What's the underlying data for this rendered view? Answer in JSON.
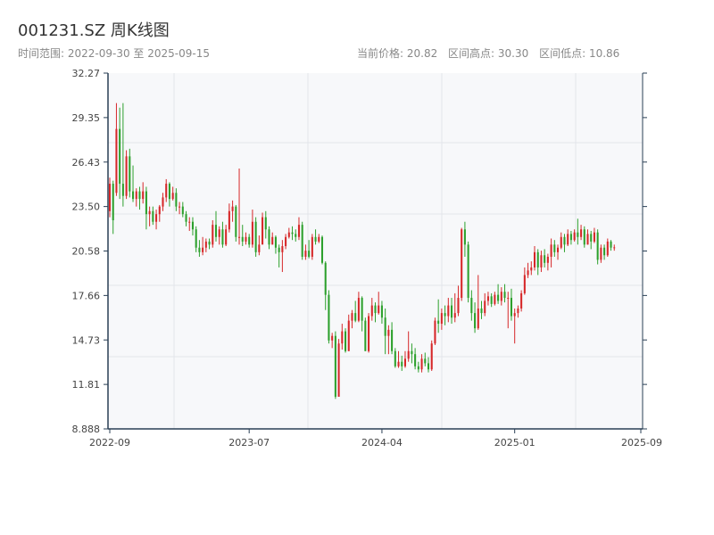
{
  "header": {
    "title": "001231.SZ 周K线图",
    "range_label": "时间范围: 2022-09-30 至 2025-09-15",
    "current_price_label": "当前价格: 20.82",
    "high_label": "区间高点: 30.30",
    "low_label": "区间低点: 10.86"
  },
  "colors": {
    "up": "#d62728",
    "down": "#2ca02c",
    "plot_bg": "#f7f8fa",
    "grid": "#e3e6ea",
    "axis": "#2a3f55"
  },
  "chart_data": {
    "type": "candlestick",
    "ylim": [
      8.888,
      32.27
    ],
    "y_ticks": [
      "32.27",
      "29.35",
      "26.43",
      "23.50",
      "20.58",
      "17.66",
      "14.73",
      "11.81",
      "8.888"
    ],
    "x_ticks": [
      "2022-09",
      "2023-07",
      "2024-04",
      "2025-01",
      "2025-09"
    ],
    "x_tick_weeks": [
      0,
      42,
      82,
      122,
      160
    ],
    "total_weeks": 160,
    "candles": [
      [
        23.2,
        25.0,
        25.4,
        22.8
      ],
      [
        25.0,
        22.6,
        25.2,
        21.7
      ],
      [
        24.4,
        28.6,
        30.3,
        24.2
      ],
      [
        28.6,
        25.0,
        30.0,
        24.0
      ],
      [
        25.0,
        24.2,
        30.3,
        23.5
      ],
      [
        24.2,
        26.8,
        27.2,
        24.0
      ],
      [
        26.8,
        24.5,
        27.3,
        24.1
      ],
      [
        24.5,
        24.0,
        26.2,
        23.8
      ],
      [
        24.0,
        24.5,
        24.7,
        23.5
      ],
      [
        24.5,
        24.0,
        24.8,
        23.3
      ],
      [
        24.0,
        24.5,
        25.1,
        23.7
      ],
      [
        24.5,
        23.0,
        24.8,
        22.0
      ],
      [
        23.0,
        23.2,
        23.5,
        22.2
      ],
      [
        23.2,
        22.5,
        23.5,
        22.3
      ],
      [
        22.5,
        23.0,
        23.3,
        22.0
      ],
      [
        23.0,
        23.5,
        23.6,
        22.5
      ],
      [
        23.5,
        24.1,
        24.4,
        23.2
      ],
      [
        24.1,
        25.0,
        25.3,
        23.8
      ],
      [
        25.0,
        24.0,
        25.1,
        23.5
      ],
      [
        24.0,
        24.4,
        24.8,
        23.9
      ],
      [
        24.4,
        23.5,
        24.7,
        23.2
      ],
      [
        23.5,
        23.5,
        23.8,
        23.0
      ],
      [
        23.5,
        23.0,
        23.8,
        22.8
      ],
      [
        23.0,
        22.5,
        23.2,
        22.2
      ],
      [
        22.5,
        22.5,
        22.8,
        21.9
      ],
      [
        22.5,
        22.0,
        22.8,
        21.6
      ],
      [
        22.0,
        20.8,
        22.2,
        20.5
      ],
      [
        20.8,
        20.5,
        21.3,
        20.2
      ],
      [
        20.5,
        20.8,
        21.5,
        20.3
      ],
      [
        20.8,
        21.2,
        21.4,
        20.5
      ],
      [
        21.2,
        21.0,
        21.4,
        20.7
      ],
      [
        21.0,
        22.3,
        22.6,
        20.8
      ],
      [
        22.3,
        21.5,
        23.2,
        21.2
      ],
      [
        21.5,
        22.0,
        22.2,
        21.0
      ],
      [
        22.0,
        21.0,
        22.5,
        20.8
      ],
      [
        21.0,
        22.0,
        22.3,
        20.9
      ],
      [
        22.0,
        23.2,
        23.7,
        21.8
      ],
      [
        23.2,
        23.5,
        23.9,
        22.5
      ],
      [
        23.5,
        21.5,
        23.6,
        21.2
      ],
      [
        21.5,
        21.5,
        26.0,
        21.0
      ],
      [
        21.5,
        21.2,
        22.3,
        20.9
      ],
      [
        21.2,
        21.5,
        21.8,
        21.0
      ],
      [
        21.5,
        21.0,
        21.7,
        20.8
      ],
      [
        21.0,
        22.5,
        23.3,
        20.8
      ],
      [
        22.5,
        20.5,
        22.8,
        20.2
      ],
      [
        20.5,
        21.0,
        21.6,
        20.3
      ],
      [
        21.0,
        22.8,
        23.1,
        21.5
      ],
      [
        22.8,
        22.0,
        23.2,
        21.4
      ],
      [
        22.0,
        21.0,
        22.2,
        20.7
      ],
      [
        21.0,
        21.5,
        21.8,
        21.0
      ],
      [
        21.5,
        20.8,
        21.6,
        20.4
      ],
      [
        20.8,
        20.5,
        21.0,
        19.5
      ],
      [
        20.5,
        20.9,
        21.3,
        19.2
      ],
      [
        20.9,
        21.5,
        21.7,
        20.7
      ],
      [
        21.5,
        21.8,
        22.1,
        21.4
      ],
      [
        21.8,
        21.7,
        22.2,
        21.3
      ],
      [
        21.7,
        21.5,
        22.0,
        21.2
      ],
      [
        21.5,
        22.3,
        22.8,
        21.3
      ],
      [
        22.3,
        20.2,
        22.5,
        20.0
      ],
      [
        20.2,
        20.6,
        21.0,
        20.0
      ],
      [
        20.6,
        20.2,
        21.3,
        20.1
      ],
      [
        20.2,
        21.5,
        21.7,
        20.0
      ],
      [
        21.5,
        21.2,
        22.0,
        21.0
      ],
      [
        21.2,
        21.5,
        21.7,
        21.1
      ],
      [
        21.5,
        19.8,
        21.6,
        19.7
      ],
      [
        19.8,
        17.7,
        19.9,
        16.7
      ],
      [
        17.7,
        14.7,
        18.0,
        14.5
      ],
      [
        14.7,
        15.0,
        15.2,
        14.2
      ],
      [
        15.0,
        11.0,
        15.3,
        10.86
      ],
      [
        11.0,
        14.5,
        14.8,
        13.5
      ],
      [
        14.5,
        15.3,
        15.8,
        14.1
      ],
      [
        15.3,
        14.0,
        15.5,
        13.9
      ],
      [
        14.0,
        16.0,
        16.4,
        14.0
      ],
      [
        16.0,
        16.5,
        16.7,
        15.5
      ],
      [
        16.5,
        16.0,
        17.3,
        15.9
      ],
      [
        16.0,
        17.5,
        17.9,
        15.9
      ],
      [
        17.5,
        16.0,
        17.6,
        15.3
      ],
      [
        16.0,
        14.0,
        16.2,
        14.0
      ],
      [
        14.0,
        16.3,
        16.5,
        13.9
      ],
      [
        16.3,
        17.0,
        17.5,
        16.0
      ],
      [
        17.0,
        16.5,
        17.2,
        15.9
      ],
      [
        16.5,
        17.0,
        17.9,
        16.4
      ],
      [
        17.0,
        16.2,
        17.3,
        15.8
      ],
      [
        16.2,
        15.0,
        16.8,
        13.8
      ],
      [
        15.0,
        15.4,
        15.7,
        13.8
      ],
      [
        15.4,
        14.0,
        15.9,
        13.8
      ],
      [
        14.0,
        13.0,
        14.2,
        12.9
      ],
      [
        13.0,
        13.3,
        14.0,
        12.9
      ],
      [
        13.3,
        13.0,
        13.7,
        12.7
      ],
      [
        13.0,
        13.5,
        14.0,
        12.9
      ],
      [
        13.5,
        14.0,
        15.3,
        13.3
      ],
      [
        14.0,
        13.8,
        14.5,
        13.2
      ],
      [
        13.8,
        13.0,
        14.2,
        12.8
      ],
      [
        13.0,
        12.8,
        13.3,
        12.6
      ],
      [
        12.8,
        13.5,
        13.8,
        12.6
      ],
      [
        13.5,
        13.2,
        13.9,
        13.0
      ],
      [
        13.2,
        12.8,
        13.6,
        12.6
      ],
      [
        12.8,
        14.5,
        14.7,
        12.7
      ],
      [
        14.5,
        16.0,
        16.2,
        14.4
      ],
      [
        16.0,
        15.8,
        17.4,
        15.2
      ],
      [
        15.8,
        16.5,
        16.8,
        15.4
      ],
      [
        16.5,
        16.3,
        17.0,
        15.7
      ],
      [
        16.3,
        17.0,
        17.5,
        15.9
      ],
      [
        17.0,
        16.2,
        17.5,
        15.8
      ],
      [
        16.2,
        16.5,
        17.8,
        15.9
      ],
      [
        16.5,
        17.5,
        18.3,
        16.3
      ],
      [
        17.5,
        22.0,
        22.1,
        17.3
      ],
      [
        22.0,
        21.0,
        22.5,
        20.2
      ],
      [
        21.0,
        17.5,
        21.2,
        17.2
      ],
      [
        17.5,
        16.5,
        18.0,
        16.0
      ],
      [
        16.5,
        15.5,
        17.2,
        15.2
      ],
      [
        15.5,
        16.8,
        19.0,
        15.4
      ],
      [
        16.8,
        16.5,
        17.3,
        16.1
      ],
      [
        16.5,
        17.3,
        17.8,
        16.3
      ],
      [
        17.3,
        17.6,
        17.9,
        17.0
      ],
      [
        17.6,
        17.1,
        17.8,
        16.9
      ],
      [
        17.1,
        17.7,
        17.9,
        17.0
      ],
      [
        17.7,
        17.3,
        18.4,
        17.1
      ],
      [
        17.3,
        17.9,
        18.2,
        17.0
      ],
      [
        17.9,
        17.5,
        18.4,
        17.2
      ],
      [
        17.5,
        17.5,
        17.9,
        15.5
      ],
      [
        17.5,
        16.3,
        18.1,
        16.0
      ],
      [
        16.3,
        16.5,
        16.8,
        14.5
      ],
      [
        16.5,
        16.8,
        17.0,
        16.2
      ],
      [
        16.8,
        17.8,
        18.0,
        16.6
      ],
      [
        17.8,
        19.0,
        19.5,
        17.7
      ],
      [
        19.0,
        19.3,
        19.8,
        18.8
      ],
      [
        19.3,
        19.5,
        19.9,
        19.0
      ],
      [
        19.5,
        20.5,
        20.9,
        19.3
      ],
      [
        20.5,
        19.5,
        20.7,
        19.0
      ],
      [
        19.5,
        20.3,
        20.6,
        19.2
      ],
      [
        20.3,
        19.8,
        20.7,
        19.5
      ],
      [
        19.8,
        20.2,
        20.4,
        19.3
      ],
      [
        20.2,
        21.0,
        21.4,
        19.5
      ],
      [
        21.0,
        20.5,
        21.3,
        20.2
      ],
      [
        20.5,
        20.8,
        21.0,
        20.0
      ],
      [
        20.8,
        21.5,
        21.8,
        20.7
      ],
      [
        21.5,
        21.0,
        21.7,
        20.5
      ],
      [
        21.0,
        21.7,
        22.0,
        20.9
      ],
      [
        21.7,
        21.3,
        21.9,
        21.0
      ],
      [
        21.3,
        21.8,
        22.0,
        21.2
      ],
      [
        21.8,
        21.5,
        22.7,
        21.0
      ],
      [
        21.5,
        22.0,
        22.3,
        21.3
      ],
      [
        22.0,
        21.0,
        22.2,
        20.8
      ],
      [
        21.0,
        21.7,
        22.0,
        21.0
      ],
      [
        21.7,
        21.2,
        21.9,
        20.7
      ],
      [
        21.2,
        21.8,
        22.1,
        21.1
      ],
      [
        21.8,
        20.0,
        22.0,
        19.7
      ],
      [
        20.0,
        20.8,
        21.0,
        19.8
      ],
      [
        20.8,
        20.3,
        21.0,
        20.0
      ],
      [
        20.3,
        21.2,
        21.4,
        20.2
      ],
      [
        21.2,
        20.8,
        21.3,
        20.6
      ],
      [
        20.8,
        20.82,
        21.0,
        20.6
      ]
    ]
  }
}
